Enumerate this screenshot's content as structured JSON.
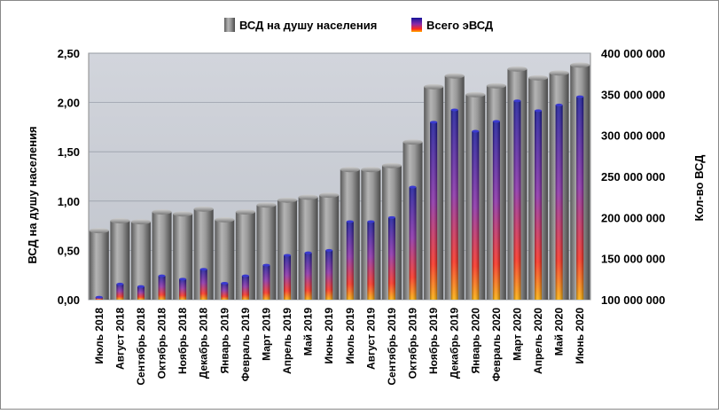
{
  "colors": {
    "plot_bg": "#c8ccd4",
    "grey_bar": "#8a8a8a",
    "evsd_top": "#1a1aa8",
    "evsd_mid": "#9a2aa0",
    "evsd_low": "#ff2a20",
    "evsd_base": "#ffb000"
  },
  "chart_data": {
    "type": "bar",
    "legend": [
      {
        "name": "ВСД на душу населения",
        "icon": "grey-cylinder-icon"
      },
      {
        "name": "Всего эВСД",
        "icon": "red-blue-cylinder-icon"
      }
    ],
    "legend_position": "top",
    "ylabel_left": "ВСД на душу населения",
    "ylabel_right": "Кол-во ВСД",
    "ylim_left": [
      0,
      2.5
    ],
    "ylim_right": [
      100000000,
      400000000
    ],
    "yticks_left": [
      "0,00",
      "0,50",
      "1,00",
      "1,50",
      "2,00",
      "2,50"
    ],
    "yticks_right": [
      "100 000 000",
      "150 000 000",
      "200 000 000",
      "250 000 000",
      "300 000 000",
      "350 000 000",
      "400 000 000"
    ],
    "grid": true,
    "categories": [
      "Июль 2018",
      "Август 2018",
      "Сентябрь 2018",
      "Октябрь 2018",
      "Ноябрь 2018",
      "Декабрь 2018",
      "Январь 2019",
      "Февраль 2019",
      "Март 2019",
      "Апрель 2019",
      "Май 2019",
      "Июнь 2019",
      "Июль 2019",
      "Август 2019",
      "Сентябрь 2019",
      "Октябрь 2019",
      "Ноябрь 2019",
      "Декабрь 2019",
      "Январь 2020",
      "Февраль 2020",
      "Март 2020",
      "Апрель 2020",
      "Май 2020",
      "Июнь 2020"
    ],
    "series": [
      {
        "name": "ВСД на душу населения",
        "axis": "left",
        "values": [
          0.7,
          0.8,
          0.79,
          0.89,
          0.87,
          0.92,
          0.81,
          0.89,
          0.96,
          1.01,
          1.04,
          1.06,
          1.32,
          1.32,
          1.36,
          1.6,
          2.16,
          2.27,
          2.08,
          2.17,
          2.34,
          2.25,
          2.3,
          2.38
        ]
      },
      {
        "name": "Всего эВСД",
        "axis": "right",
        "values": [
          103000000,
          119000000,
          116000000,
          129000000,
          125000000,
          137000000,
          120000000,
          129000000,
          142000000,
          154000000,
          157000000,
          160000000,
          195000000,
          195000000,
          200000000,
          237000000,
          316000000,
          331000000,
          305000000,
          317000000,
          342000000,
          330000000,
          337000000,
          347000000
        ]
      }
    ]
  }
}
